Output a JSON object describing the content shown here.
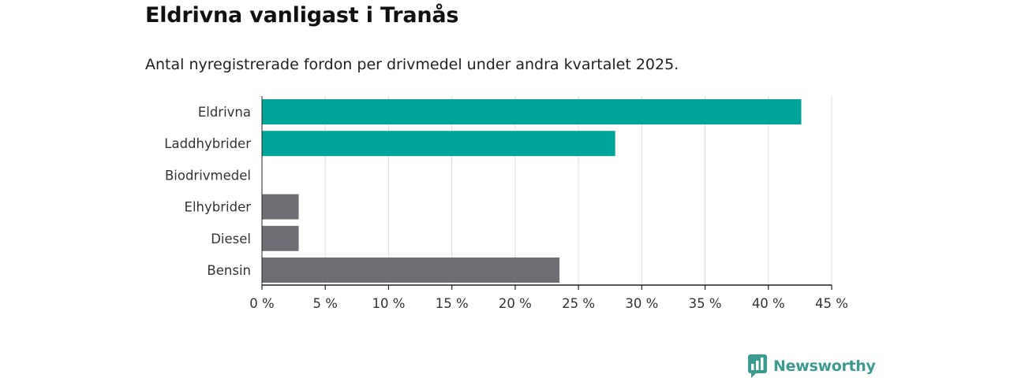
{
  "chart_data": {
    "type": "bar",
    "orientation": "horizontal",
    "title": "Eldrivna vanligast i Tranås",
    "subtitle": "Antal nyregistrerade fordon per drivmedel under andra kvartalet 2025.",
    "categories": [
      "Eldrivna",
      "Laddhybrider",
      "Biodrivmedel",
      "Elhybrider",
      "Diesel",
      "Bensin"
    ],
    "values": [
      42.6,
      27.9,
      0,
      2.9,
      2.9,
      23.5
    ],
    "bar_colors": [
      "#00a499",
      "#00a499",
      "#6d6e73",
      "#6d6e73",
      "#6d6e73",
      "#6d6e73"
    ],
    "xlim": [
      0,
      45
    ],
    "x_ticks": [
      0,
      5,
      10,
      15,
      20,
      25,
      30,
      35,
      40,
      45
    ],
    "x_tick_labels": [
      "0 %",
      "5 %",
      "10 %",
      "15 %",
      "20 %",
      "25 %",
      "30 %",
      "35 %",
      "40 %",
      "45 %"
    ],
    "grid": true
  },
  "brand": {
    "name": "Newsworthy",
    "color": "#3c9b90",
    "icon": "newsworthy-logo-icon"
  }
}
